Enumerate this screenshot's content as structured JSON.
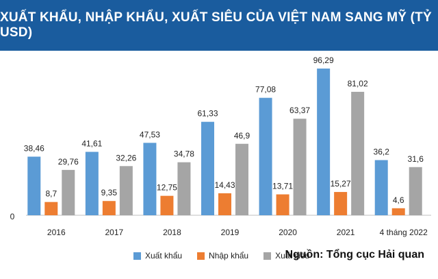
{
  "chart_data": {
    "type": "bar",
    "title": "XUẤT KHẨU, NHẬP KHẨU, XUẤT SIÊU CỦA VIỆT NAM SANG MỸ (TỶ USD)",
    "categories": [
      "2016",
      "2017",
      "2018",
      "2019",
      "2020",
      "2021",
      "4 tháng 2022"
    ],
    "series": [
      {
        "name": "Xuất khẩu",
        "color": "#5b9bd5",
        "values": [
          38.46,
          41.61,
          47.53,
          61.33,
          77.08,
          96.29,
          36.2
        ],
        "labels": [
          "38,46",
          "41,61",
          "47,53",
          "61,33",
          "77,08",
          "96,29",
          "36,2"
        ]
      },
      {
        "name": "Nhập khẩu",
        "color": "#ed7d31",
        "values": [
          8.7,
          9.35,
          12.75,
          14.43,
          13.71,
          15.27,
          4.6
        ],
        "labels": [
          "8,7",
          "9,35",
          "12,75",
          "14,43",
          "13,71",
          "15,27",
          "4,6"
        ]
      },
      {
        "name": "Xuất siêu",
        "color": "#a5a5a5",
        "values": [
          29.76,
          32.26,
          34.78,
          46.9,
          63.37,
          81.02,
          31.6
        ],
        "labels": [
          "29,76",
          "32,26",
          "34,78",
          "46,9",
          "63,37",
          "81,02",
          "31,6"
        ]
      }
    ],
    "y_tick_label": "0",
    "ylim": [
      0,
      100
    ],
    "legend_position": "bottom",
    "grid": false
  },
  "source": "Nguồn: Tổng cục Hải quan"
}
